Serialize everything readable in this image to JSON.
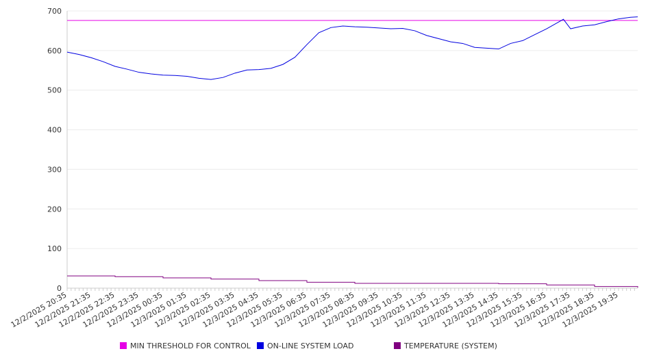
{
  "chart_data": {
    "type": "line",
    "title": "",
    "xlabel": "",
    "ylabel": "",
    "ylim": [
      0,
      700
    ],
    "yticks": [
      "0",
      "100",
      "200",
      "300",
      "400",
      "500",
      "600",
      "700"
    ],
    "grid": true,
    "x_unit": "hours since 12/2/2025 20:35",
    "xlim": [
      0,
      23.8
    ],
    "xtick_labels": [
      "12/2/2025 20:35",
      "12/2/2025 21:35",
      "12/2/2025 22:35",
      "12/2/2025 23:35",
      "12/3/2025 00:35",
      "12/3/2025 01:35",
      "12/3/2025 02:35",
      "12/3/2025 03:35",
      "12/3/2025 04:35",
      "12/3/2025 05:35",
      "12/3/2025 06:35",
      "12/3/2025 07:35",
      "12/3/2025 08:35",
      "12/3/2025 09:35",
      "12/3/2025 10:35",
      "12/3/2025 11:35",
      "12/3/2025 12:35",
      "12/3/2025 13:35",
      "12/3/2025 14:35",
      "12/3/2025 15:35",
      "12/3/2025 16:35",
      "12/3/2025 17:35",
      "12/3/2025 18:35",
      "12/3/2025 19:35"
    ],
    "legend_position": "bottom",
    "series": [
      {
        "name": "MIN THRESHOLD FOR CONTROL",
        "color": "#e600e6",
        "x": [
          0,
          23.8
        ],
        "y": [
          676,
          676
        ]
      },
      {
        "name": "ON-LINE SYSTEM LOAD",
        "color": "#0000e0",
        "x": [
          0,
          0.5,
          1,
          1.5,
          2,
          2.5,
          3,
          3.5,
          4,
          4.5,
          5,
          5.5,
          6,
          6.5,
          7,
          7.5,
          8,
          8.5,
          9,
          9.5,
          10,
          10.5,
          11,
          11.5,
          12,
          12.5,
          13,
          13.5,
          14,
          14.5,
          15,
          15.5,
          16,
          16.5,
          17,
          17.5,
          18,
          18.5,
          19,
          19.5,
          20,
          20.5,
          20.7,
          21,
          21.5,
          22,
          22.5,
          23,
          23.5,
          23.8
        ],
        "y": [
          596,
          590,
          582,
          572,
          560,
          553,
          545,
          541,
          538,
          537,
          535,
          530,
          527,
          532,
          543,
          551,
          552,
          555,
          565,
          583,
          615,
          645,
          658,
          662,
          660,
          659,
          657,
          655,
          656,
          650,
          638,
          630,
          622,
          618,
          608,
          606,
          604,
          618,
          625,
          640,
          655,
          672,
          679,
          655,
          662,
          665,
          673,
          680,
          684,
          685
        ]
      },
      {
        "name": "TEMPERATURE (SYSTEM)",
        "color": "#800080",
        "x": [
          0,
          2,
          4,
          6,
          8,
          10,
          12,
          14,
          16,
          18,
          20,
          22,
          23.8
        ],
        "y": [
          31,
          29,
          26,
          23,
          19,
          15,
          12,
          12,
          12,
          11,
          8,
          4,
          1
        ]
      }
    ]
  }
}
